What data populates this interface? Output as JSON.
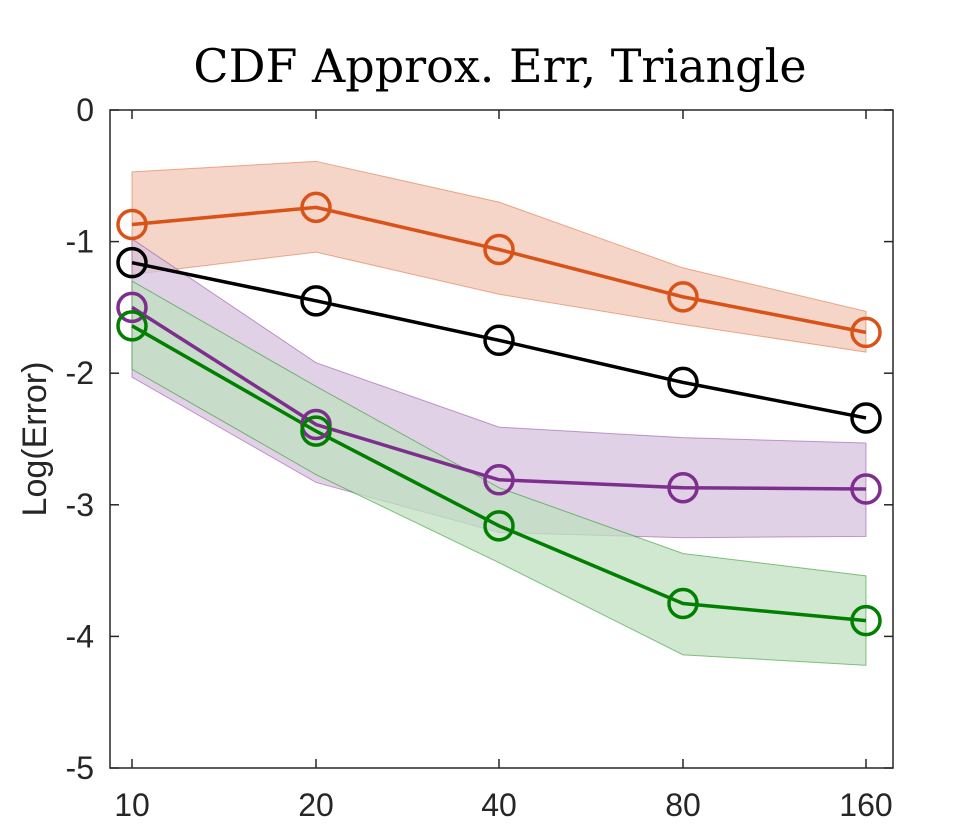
{
  "chart_data": {
    "type": "line",
    "title": "CDF Approx. Err, Triangle",
    "xlabel": "",
    "ylabel": "Log(Error)",
    "x_scale": "log2",
    "x": [
      10,
      20,
      40,
      80,
      160
    ],
    "x_tick_labels": [
      "10",
      "20",
      "40",
      "80",
      "160"
    ],
    "y_ticks": [
      0,
      -1,
      -2,
      -3,
      -4,
      -5
    ],
    "y_tick_labels": [
      "0",
      "-1",
      "-2",
      "-3",
      "-4",
      "-5"
    ],
    "ylim": [
      -5,
      0
    ],
    "grid": false,
    "legend": "none",
    "series": [
      {
        "name": "orange",
        "color": "#d95319",
        "band_color": "#f2c7b4",
        "values": [
          -0.87,
          -0.74,
          -1.06,
          -1.42,
          -1.69
        ],
        "upper": [
          -0.47,
          -0.39,
          -0.7,
          -1.2,
          -1.53
        ],
        "lower": [
          -1.25,
          -1.08,
          -1.4,
          -1.63,
          -1.84
        ]
      },
      {
        "name": "black",
        "color": "#000000",
        "values": [
          -1.16,
          -1.45,
          -1.75,
          -2.07,
          -2.34
        ]
      },
      {
        "name": "purple",
        "color": "#7e2f8e",
        "band_color": "#d7c1de",
        "values": [
          -1.5,
          -2.39,
          -2.81,
          -2.87,
          -2.88
        ],
        "upper": [
          -0.98,
          -1.92,
          -2.41,
          -2.49,
          -2.53
        ],
        "lower": [
          -2.03,
          -2.83,
          -3.21,
          -3.25,
          -3.24
        ]
      },
      {
        "name": "green",
        "color": "#007f00",
        "band_color": "#bfe0bf",
        "values": [
          -1.64,
          -2.44,
          -3.16,
          -3.75,
          -3.88
        ],
        "upper": [
          -1.3,
          -2.1,
          -2.87,
          -3.37,
          -3.54
        ],
        "lower": [
          -1.97,
          -2.77,
          -3.44,
          -4.14,
          -4.22
        ]
      }
    ]
  }
}
